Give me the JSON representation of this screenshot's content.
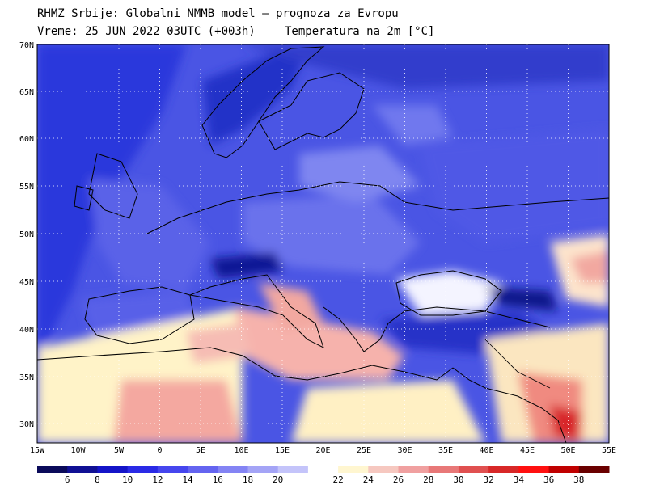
{
  "header": {
    "line1": "RHMZ Srbije: Globalni NMMB model — prognoza za Evropu",
    "line2_left": "Vreme: 25 JUN 2022 03UTC (+003h)",
    "line2_right": "Temperatura na 2m [°C]"
  },
  "axes": {
    "lat_labels": [
      "70N",
      "65N",
      "60N",
      "55N",
      "50N",
      "45N",
      "40N",
      "35N",
      "30N"
    ],
    "lon_labels": [
      "15W",
      "10W",
      "5W",
      "0",
      "5E",
      "10E",
      "15E",
      "20E",
      "25E",
      "30E",
      "35E",
      "40E",
      "45E",
      "50E",
      "55E"
    ]
  },
  "colorbar": {
    "labels": [
      "6",
      "8",
      "10",
      "12",
      "14",
      "16",
      "18",
      "20",
      "22",
      "24",
      "26",
      "28",
      "30",
      "32",
      "34",
      "36",
      "38"
    ],
    "colors": [
      "#0a0a5a",
      "#101094",
      "#1414c8",
      "#2a2ae6",
      "#4646ee",
      "#6464f0",
      "#8484f4",
      "#a4a4f6",
      "#c4c4fa",
      "#ffffff",
      "#fff6d0",
      "#f6c8c0",
      "#f0a0a0",
      "#e87878",
      "#e05050",
      "#d82828",
      "#ff1010",
      "#c00000",
      "#6a0000"
    ]
  },
  "colors": {
    "sea_default": "#3c4ce0",
    "land_cold": "#5e66ea",
    "land_mild": "#8a8ef2",
    "warm": "#f6b0ac",
    "hot": "#ee8c84",
    "pale": "#fff6cc"
  }
}
